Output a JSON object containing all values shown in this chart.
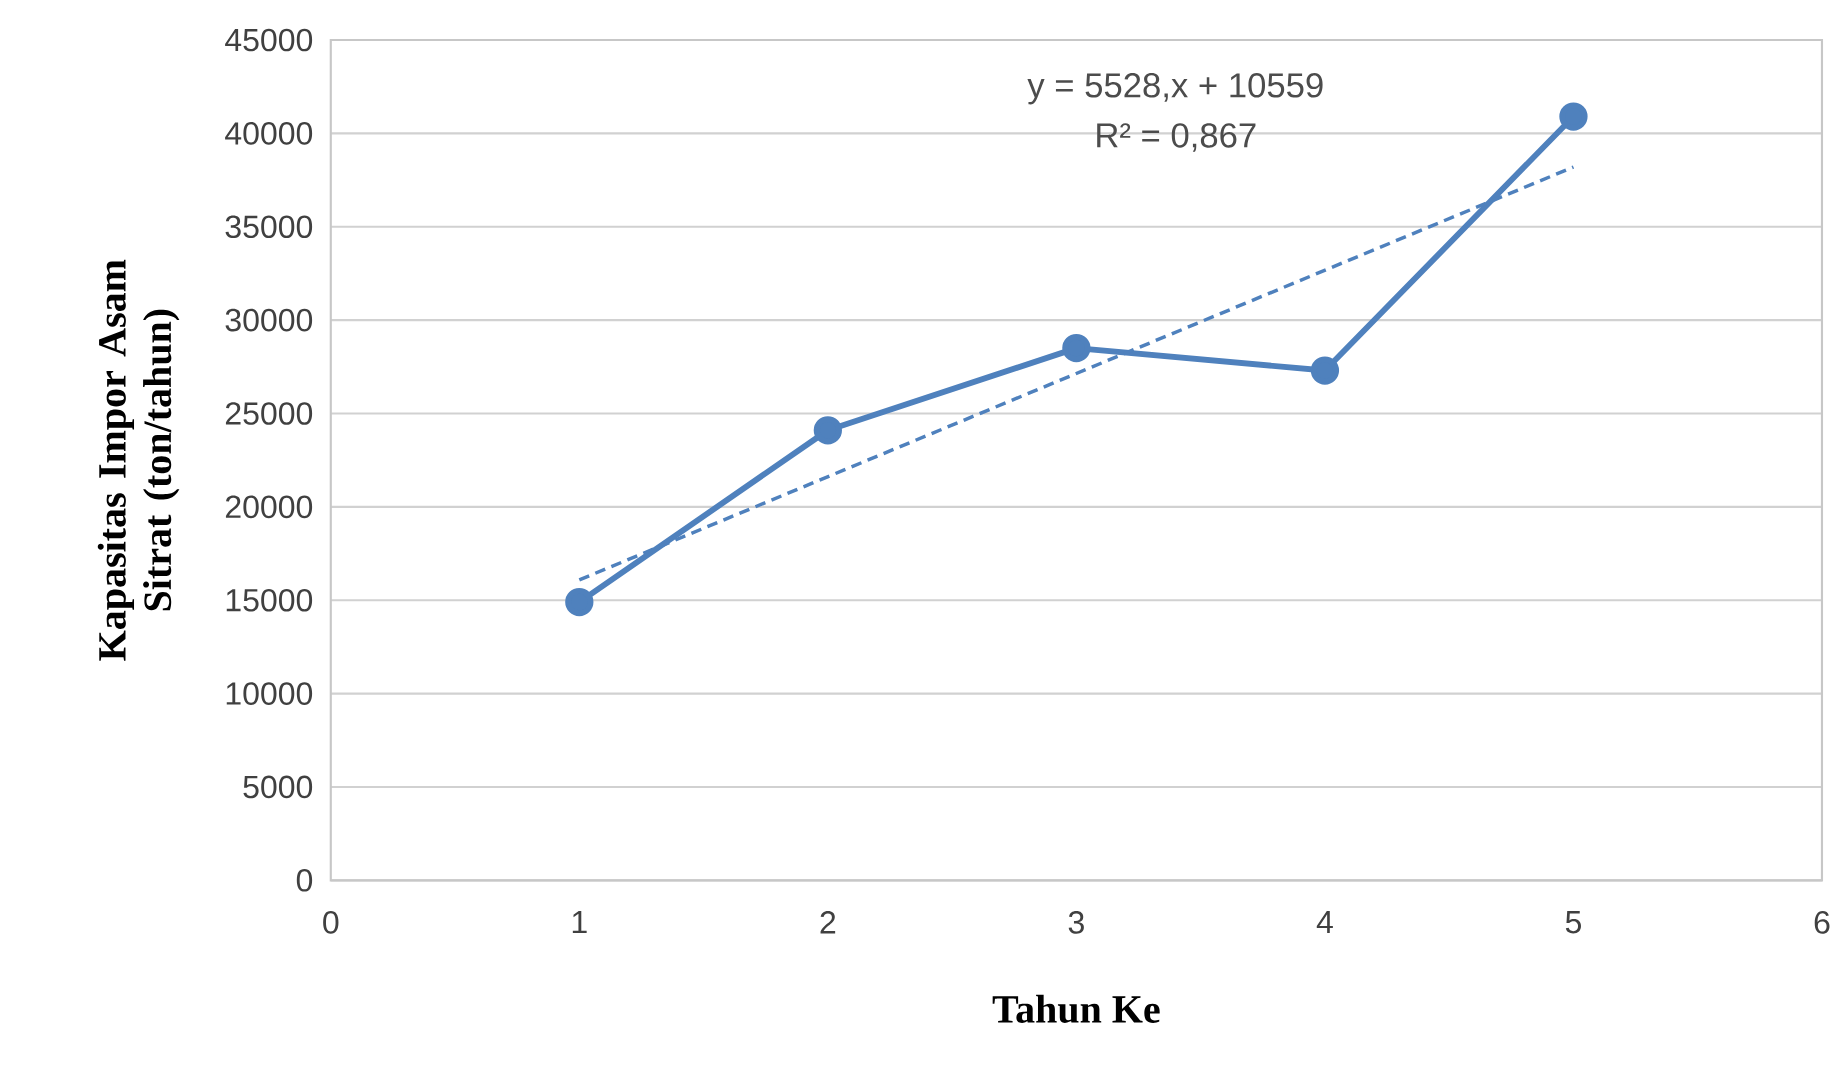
{
  "chart_data": {
    "type": "line",
    "xlabel": "Tahun Ke",
    "ylabel": "Kapasitas Impor Asam Sitrat (ton/tahun)",
    "x": [
      1,
      2,
      3,
      4,
      5
    ],
    "series": [
      {
        "color": "#4f81bd",
        "values": [
          14900,
          24100,
          28500,
          27300,
          40900
        ],
        "marker": "circle",
        "line_style": "solid"
      },
      {
        "type": "line",
        "color": "#4f81bd",
        "x": [
          1,
          5
        ],
        "values": [
          16087,
          38199
        ],
        "marker": "none",
        "line_style": "dashed"
      }
    ],
    "xlim": [
      0,
      6
    ],
    "xticks": [
      0,
      1,
      2,
      3,
      4,
      5,
      6
    ],
    "ylim": [
      0,
      45000
    ],
    "yticks": [
      0,
      5000,
      10000,
      15000,
      20000,
      25000,
      30000,
      35000,
      40000,
      45000
    ],
    "grid": "y",
    "annotations": [
      "y = 5528,x + 10559",
      "R² = 0,867"
    ]
  }
}
